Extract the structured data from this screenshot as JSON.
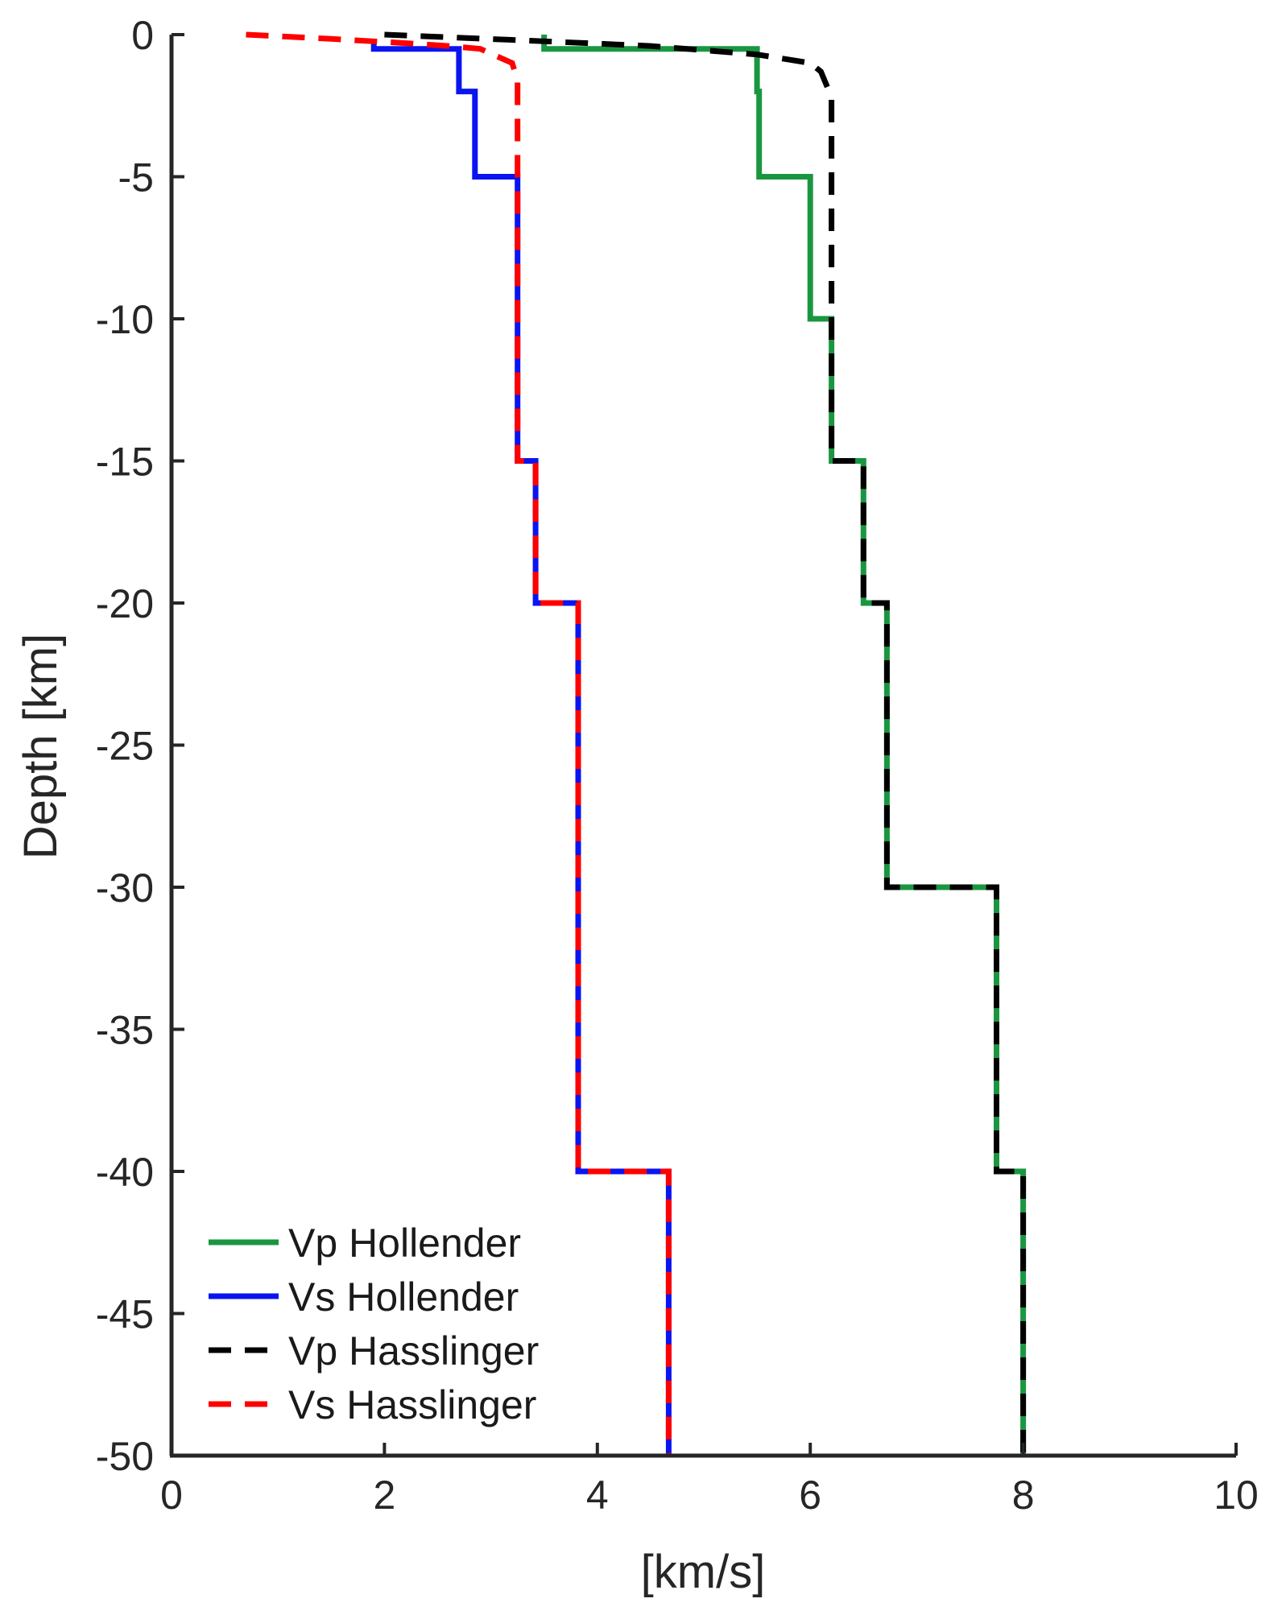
{
  "chart_data": {
    "type": "line",
    "title": "",
    "xlabel": "[km/s]",
    "ylabel": "Depth [km]",
    "xlim": [
      0,
      10
    ],
    "ylim": [
      -50,
      0
    ],
    "xticks": [
      0,
      2,
      4,
      6,
      8,
      10
    ],
    "xtick_labels": [
      "0",
      "2",
      "4",
      "6",
      "8",
      "10"
    ],
    "yticks": [
      0,
      -5,
      -10,
      -15,
      -20,
      -25,
      -30,
      -35,
      -40,
      -45,
      -50
    ],
    "ytick_labels": [
      "0",
      "-5",
      "-10",
      "-15",
      "-20",
      "-25",
      "-30",
      "-35",
      "-40",
      "-45",
      "-50"
    ],
    "grid": false,
    "legend_position": "bottom-left",
    "series": [
      {
        "name": "Vp Hollender",
        "color": "#1a9641",
        "dash": "solid",
        "points": [
          [
            3.5,
            0
          ],
          [
            3.5,
            -0.5
          ],
          [
            5.5,
            -0.5
          ],
          [
            5.5,
            -2
          ],
          [
            5.52,
            -2
          ],
          [
            5.52,
            -5
          ],
          [
            6.0,
            -5
          ],
          [
            6.0,
            -10
          ],
          [
            6.2,
            -10
          ],
          [
            6.2,
            -15
          ],
          [
            6.5,
            -15
          ],
          [
            6.5,
            -20
          ],
          [
            6.72,
            -20
          ],
          [
            6.72,
            -30
          ],
          [
            7.75,
            -30
          ],
          [
            7.75,
            -40
          ],
          [
            8.0,
            -40
          ],
          [
            8.0,
            -50
          ]
        ]
      },
      {
        "name": "Vs Hollender",
        "color": "#0a14f0",
        "dash": "solid",
        "points": [
          [
            1.9,
            -0.3
          ],
          [
            1.9,
            -0.5
          ],
          [
            2.7,
            -0.5
          ],
          [
            2.7,
            -2
          ],
          [
            2.85,
            -2
          ],
          [
            2.85,
            -5
          ],
          [
            3.25,
            -5
          ],
          [
            3.25,
            -15
          ],
          [
            3.42,
            -15
          ],
          [
            3.42,
            -20
          ],
          [
            3.82,
            -20
          ],
          [
            3.82,
            -40
          ],
          [
            4.67,
            -40
          ],
          [
            4.67,
            -50
          ]
        ]
      },
      {
        "name": "Vp Hasslinger",
        "color": "#000000",
        "dash": "dashed",
        "points": [
          [
            2.0,
            0
          ],
          [
            3.3,
            -0.2
          ],
          [
            4.5,
            -0.4
          ],
          [
            5.5,
            -0.7
          ],
          [
            6.0,
            -1.0
          ],
          [
            6.1,
            -1.3
          ],
          [
            6.2,
            -2.2
          ],
          [
            6.2,
            -15
          ],
          [
            6.5,
            -15
          ],
          [
            6.5,
            -20
          ],
          [
            6.72,
            -20
          ],
          [
            6.72,
            -30
          ],
          [
            7.75,
            -30
          ],
          [
            7.75,
            -40
          ],
          [
            8.0,
            -40
          ],
          [
            8.0,
            -50
          ]
        ]
      },
      {
        "name": "Vs Hasslinger",
        "color": "#ff0000",
        "dash": "dashed",
        "points": [
          [
            0.7,
            0
          ],
          [
            1.5,
            -0.15
          ],
          [
            2.2,
            -0.3
          ],
          [
            2.6,
            -0.4
          ],
          [
            2.9,
            -0.5
          ],
          [
            3.2,
            -1.0
          ],
          [
            3.25,
            -1.6
          ],
          [
            3.25,
            -15
          ],
          [
            3.42,
            -15
          ],
          [
            3.42,
            -20
          ],
          [
            3.82,
            -20
          ],
          [
            3.82,
            -40
          ],
          [
            4.67,
            -40
          ],
          [
            4.67,
            -50
          ]
        ]
      }
    ]
  }
}
